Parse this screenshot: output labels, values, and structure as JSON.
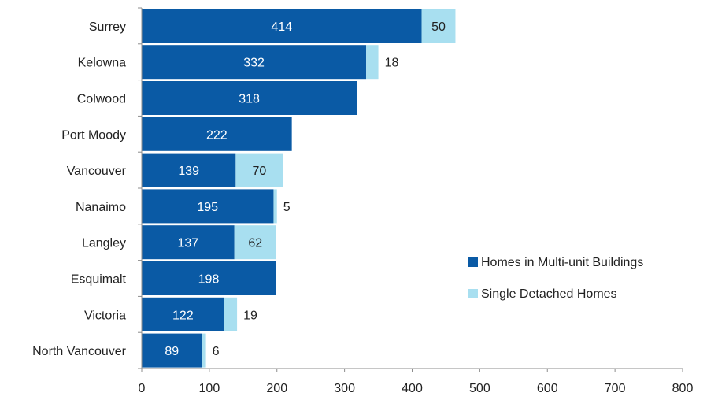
{
  "chart_data": {
    "type": "bar",
    "orientation": "horizontal",
    "stacked": true,
    "categories": [
      "Surrey",
      "Kelowna",
      "Colwood",
      "Port Moody",
      "Vancouver",
      "Nanaimo",
      "Langley",
      "Esquimalt",
      "Victoria",
      "North Vancouver"
    ],
    "series": [
      {
        "name": "Homes in Multi-unit Buildings",
        "values": [
          414,
          332,
          318,
          222,
          139,
          195,
          137,
          198,
          122,
          89
        ],
        "color": "#0a5aa5"
      },
      {
        "name": "Single Detached Homes",
        "values": [
          50,
          18,
          null,
          null,
          70,
          5,
          62,
          null,
          19,
          6
        ],
        "color": "#a8dff0"
      }
    ],
    "xlim": [
      0,
      800
    ],
    "xticks": [
      0,
      100,
      200,
      300,
      400,
      500,
      600,
      700,
      800
    ],
    "title": "",
    "xlabel": "",
    "ylabel": "",
    "legend_position": "right",
    "grid": false
  }
}
